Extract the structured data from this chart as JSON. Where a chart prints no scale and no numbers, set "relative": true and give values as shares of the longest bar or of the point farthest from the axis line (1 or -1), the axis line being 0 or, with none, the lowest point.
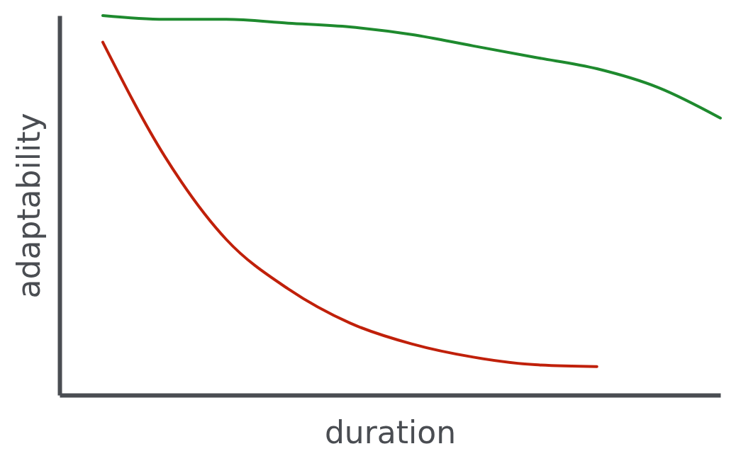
{
  "chart_data": {
    "type": "line",
    "xlabel": "duration",
    "ylabel": "adaptability",
    "relative": true,
    "grid": false,
    "legend": false,
    "categories": [
      null,
      null,
      null,
      null,
      null,
      null,
      null,
      null,
      null,
      null,
      null
    ],
    "series": [
      {
        "color": "#1e8a2e",
        "values": [
          1.0,
          0.99,
          0.99,
          0.98,
          0.97,
          0.95,
          0.92,
          0.89,
          0.86,
          0.81,
          0.73
        ]
      },
      {
        "color": "#c0200a",
        "values": [
          0.93,
          0.63,
          0.41,
          0.28,
          0.19,
          0.135,
          0.1,
          0.08,
          0.075,
          null,
          null
        ]
      }
    ]
  }
}
